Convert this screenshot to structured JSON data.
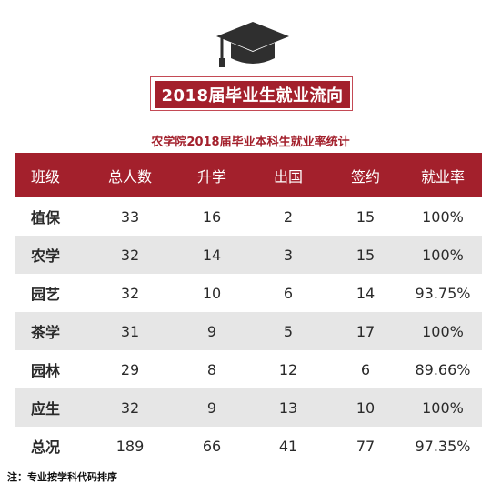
{
  "banner_title": "2018届毕业生就业流向",
  "subtitle": "农学院2018届毕业本科生就业率统计",
  "table": {
    "headers": [
      "班级",
      "总人数",
      "升学",
      "出国",
      "签约",
      "就业率"
    ],
    "rows": [
      [
        "植保",
        "33",
        "16",
        "2",
        "15",
        "100%"
      ],
      [
        "农学",
        "32",
        "14",
        "3",
        "15",
        "100%"
      ],
      [
        "园艺",
        "32",
        "10",
        "6",
        "14",
        "93.75%"
      ],
      [
        "茶学",
        "31",
        "9",
        "5",
        "17",
        "100%"
      ],
      [
        "园林",
        "29",
        "8",
        "12",
        "6",
        "89.66%"
      ],
      [
        "应生",
        "32",
        "9",
        "13",
        "10",
        "100%"
      ],
      [
        "总况",
        "189",
        "66",
        "41",
        "77",
        "97.35%"
      ]
    ]
  },
  "note": "注：专业按学科代码排序",
  "icons": {
    "header_icon": "graduation-cap-icon"
  },
  "colors": {
    "accent": "#a3202c",
    "row_alt": "#e6e6e6",
    "cap": "#2f2f2f"
  }
}
